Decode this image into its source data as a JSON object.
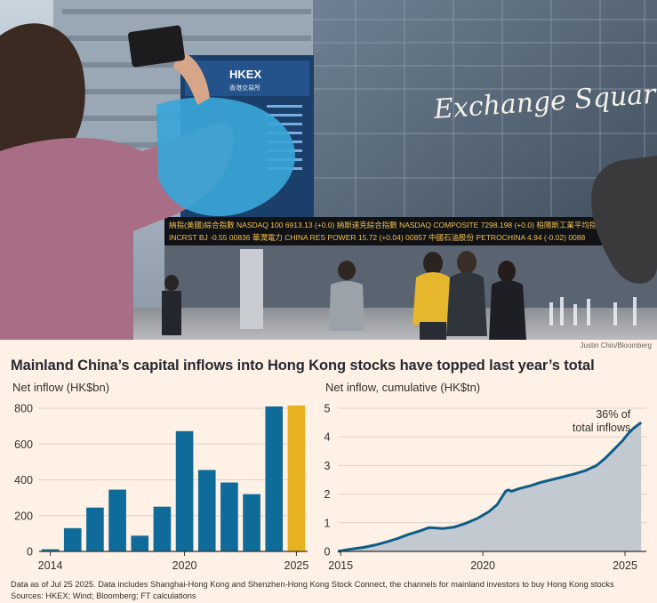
{
  "photo": {
    "sign_text": "Exchange Square",
    "screen_logo": "HKEX",
    "screen_sub": "香港交易所",
    "ticker_rows": [
      "納指(美國)綜合指數  NASDAQ 100  6913.13 (+0.0)  納斯達克綜合指數  NASDAQ COMPOSITE  7298.198 (+0.0)  柏陽斯工業平均指數",
      "INCRST BJ  -0.55  00836 華潤電力 CHINA RES POWER 15.72 (+0.04)  00857 中國石油股份 PETROCHINA 4.94 (-0.02)  0088"
    ],
    "credit": "Justin Chin/Bloomberg"
  },
  "headline": "Mainland China’s capital inflows into Hong Kong stocks have topped last year’s total",
  "footnote": {
    "line1": "Data as of Jul 25 2025. Data includes Shanghai-Hong Kong and Shenzhen-Hong Kong Stock Connect, the channels for mainland investors to buy Hong Kong stocks",
    "line2": "Sources: HKEX; Wind; Bloomberg; FT calculations"
  },
  "colors": {
    "background": "#fff1e5",
    "bar": "#0f6b99",
    "bar_highlight": "#e8b11f",
    "line": "#0d5d86",
    "area": "#bcc4cd",
    "grid": "#dcd2c8",
    "axis": "#33302e"
  },
  "chart_data": [
    {
      "type": "bar",
      "title": "Net inflow (HK$bn)",
      "categories": [
        "2014",
        "2015",
        "2016",
        "2017",
        "2018",
        "2019",
        "2020",
        "2021",
        "2022",
        "2023",
        "2024",
        "2025"
      ],
      "values": [
        12,
        130,
        245,
        345,
        88,
        250,
        672,
        455,
        385,
        320,
        810,
        815
      ],
      "highlight_category": "2025",
      "x_tick_labels": [
        "2014",
        "2020",
        "2025"
      ],
      "y_ticks": [
        0,
        200,
        400,
        600,
        800
      ],
      "ylim": [
        0,
        800
      ],
      "grid": true
    },
    {
      "type": "area",
      "title": "Net inflow, cumulative (HK$tn)",
      "x": [
        2014.9,
        2015.3,
        2015.8,
        2016.2,
        2016.6,
        2017.0,
        2017.4,
        2017.8,
        2018.1,
        2018.3,
        2018.6,
        2019.0,
        2019.4,
        2019.8,
        2020.2,
        2020.5,
        2020.8,
        2020.9,
        2021.0,
        2021.3,
        2021.7,
        2022.0,
        2022.4,
        2022.8,
        2023.2,
        2023.6,
        2024.0,
        2024.3,
        2024.6,
        2024.9,
        2025.1,
        2025.3,
        2025.57
      ],
      "values": [
        0.0,
        0.07,
        0.14,
        0.22,
        0.33,
        0.45,
        0.6,
        0.72,
        0.83,
        0.82,
        0.8,
        0.85,
        0.98,
        1.15,
        1.38,
        1.63,
        2.1,
        2.15,
        2.1,
        2.2,
        2.3,
        2.4,
        2.5,
        2.6,
        2.7,
        2.82,
        3.0,
        3.25,
        3.55,
        3.85,
        4.1,
        4.3,
        4.5
      ],
      "x_tick_labels": [
        "2015",
        "2020",
        "2025"
      ],
      "y_ticks": [
        0,
        1,
        2,
        3,
        4,
        5
      ],
      "xlim": [
        2014.9,
        2025.75
      ],
      "ylim": [
        0,
        5
      ],
      "grid": true,
      "annotation_lines": [
        "36% of",
        "total inflows"
      ]
    }
  ]
}
